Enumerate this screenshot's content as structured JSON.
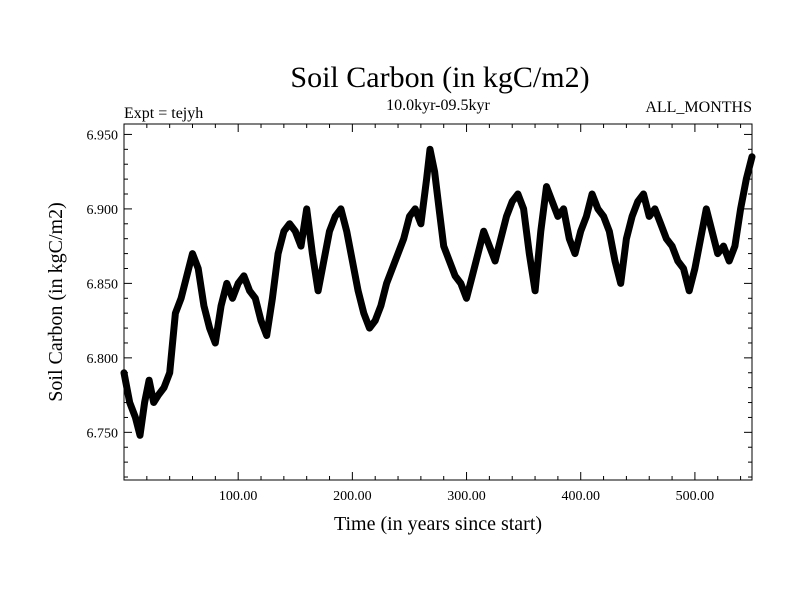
{
  "chart_data": {
    "type": "line",
    "title": "Soil Carbon (in kgC/m2)",
    "subtitle_left": "Expt = tejyh",
    "subtitle_center": "10.0kyr-09.5kyr",
    "subtitle_right": "ALL_MONTHS",
    "xlabel": "Time (in years since start)",
    "ylabel": "Soil Carbon (in kgC/m2)",
    "xlim": [
      0,
      550
    ],
    "ylim": [
      6.718,
      6.957
    ],
    "x_ticks": [
      100,
      200,
      300,
      400,
      500
    ],
    "x_tick_labels": [
      "100.00",
      "200.00",
      "300.00",
      "400.00",
      "500.00"
    ],
    "y_ticks": [
      6.75,
      6.8,
      6.85,
      6.9,
      6.95
    ],
    "y_tick_labels": [
      "6.750",
      "6.800",
      "6.850",
      "6.900",
      "6.950"
    ],
    "grid": false,
    "line_color": "#000000",
    "series": [
      {
        "name": "Soil Carbon",
        "x": [
          0,
          5,
          10,
          14,
          18,
          22,
          26,
          30,
          35,
          40,
          45,
          50,
          55,
          60,
          65,
          70,
          75,
          80,
          85,
          90,
          95,
          100,
          105,
          110,
          115,
          120,
          125,
          130,
          135,
          140,
          145,
          150,
          155,
          160,
          165,
          170,
          175,
          180,
          185,
          190,
          195,
          200,
          205,
          210,
          215,
          220,
          225,
          230,
          235,
          240,
          245,
          250,
          255,
          260,
          265,
          268,
          272,
          276,
          280,
          285,
          290,
          295,
          300,
          305,
          310,
          315,
          320,
          325,
          330,
          335,
          340,
          345,
          350,
          355,
          360,
          365,
          370,
          375,
          380,
          385,
          390,
          395,
          400,
          405,
          410,
          415,
          420,
          425,
          430,
          435,
          440,
          445,
          450,
          455,
          460,
          465,
          470,
          475,
          480,
          485,
          490,
          495,
          500,
          505,
          510,
          515,
          520,
          525,
          530,
          535,
          540,
          545,
          550
        ],
        "values": [
          6.79,
          6.77,
          6.76,
          6.748,
          6.77,
          6.785,
          6.77,
          6.775,
          6.78,
          6.79,
          6.83,
          6.84,
          6.855,
          6.87,
          6.86,
          6.835,
          6.82,
          6.81,
          6.835,
          6.85,
          6.84,
          6.85,
          6.855,
          6.845,
          6.84,
          6.825,
          6.815,
          6.84,
          6.87,
          6.885,
          6.89,
          6.885,
          6.875,
          6.9,
          6.87,
          6.845,
          6.865,
          6.885,
          6.895,
          6.9,
          6.885,
          6.865,
          6.845,
          6.83,
          6.82,
          6.825,
          6.835,
          6.85,
          6.86,
          6.87,
          6.88,
          6.895,
          6.9,
          6.89,
          6.92,
          6.94,
          6.925,
          6.9,
          6.875,
          6.865,
          6.855,
          6.85,
          6.84,
          6.855,
          6.87,
          6.885,
          6.875,
          6.865,
          6.88,
          6.895,
          6.905,
          6.91,
          6.9,
          6.87,
          6.845,
          6.885,
          6.915,
          6.905,
          6.895,
          6.9,
          6.88,
          6.87,
          6.885,
          6.895,
          6.91,
          6.9,
          6.895,
          6.885,
          6.865,
          6.85,
          6.88,
          6.895,
          6.905,
          6.91,
          6.895,
          6.9,
          6.89,
          6.88,
          6.875,
          6.865,
          6.86,
          6.845,
          6.86,
          6.88,
          6.9,
          6.885,
          6.87,
          6.875,
          6.865,
          6.875,
          6.9,
          6.92,
          6.935
        ]
      }
    ]
  }
}
